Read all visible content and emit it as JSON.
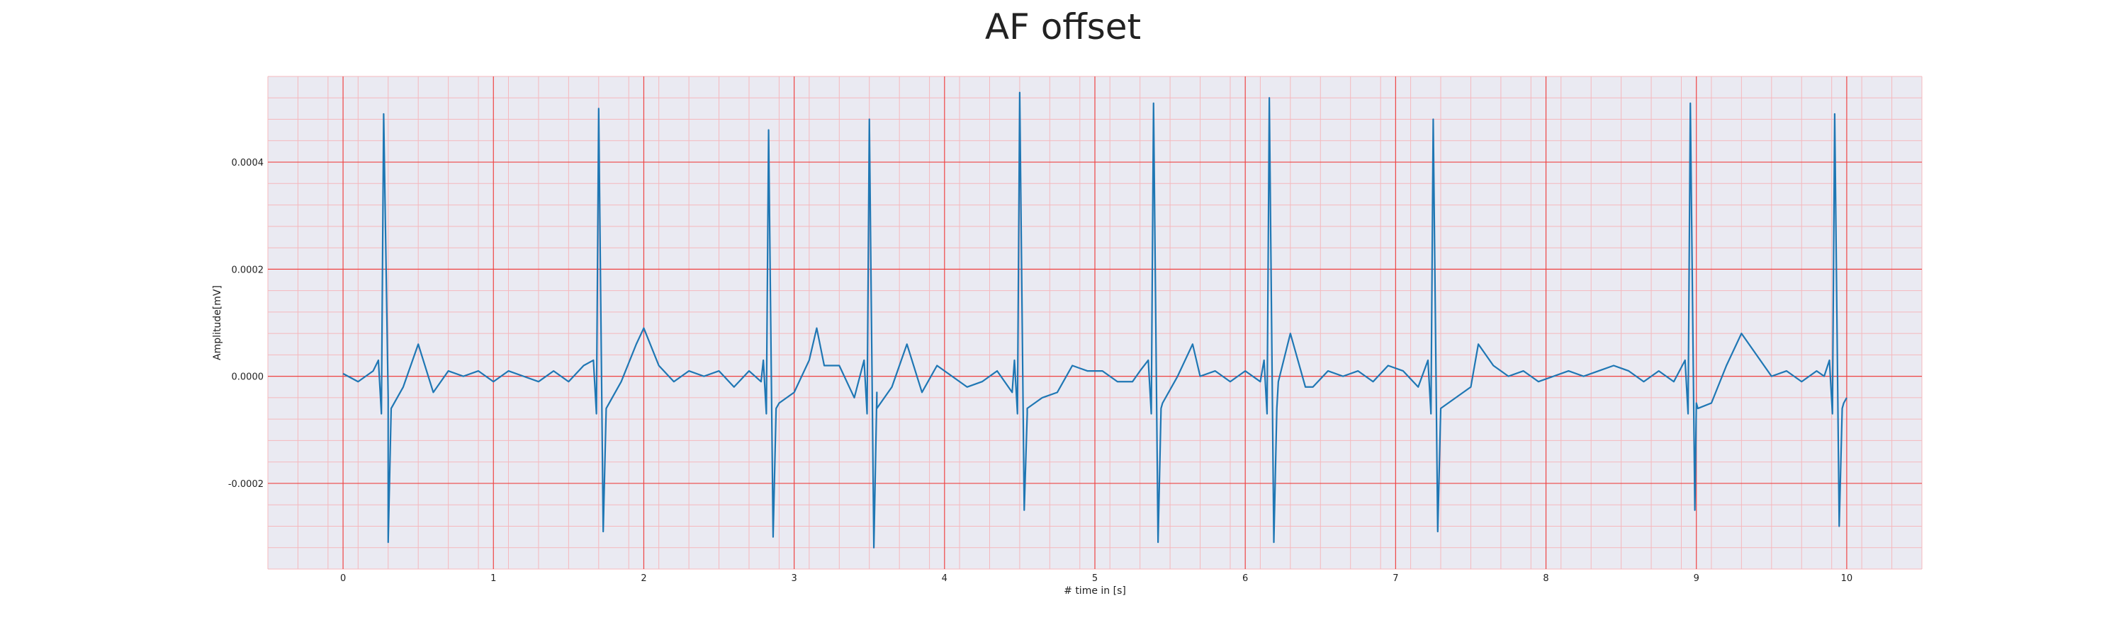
{
  "chart_data": {
    "type": "line",
    "title": "AF offset",
    "xlabel": "# time in [s]",
    "ylabel": "Amplitude[mV]",
    "xlim": [
      -0.5,
      10.5
    ],
    "ylim": [
      -0.00036,
      0.00056
    ],
    "xticks": [
      0,
      1,
      2,
      3,
      4,
      5,
      6,
      7,
      8,
      9,
      10
    ],
    "xtick_labels": [
      "0",
      "1",
      "2",
      "3",
      "4",
      "5",
      "6",
      "7",
      "8",
      "9",
      "10"
    ],
    "yticks": [
      -0.0002,
      0.0,
      0.0002,
      0.0004
    ],
    "ytick_labels": [
      "-0.0002",
      "0.0000",
      "0.0002",
      "0.0004"
    ],
    "grid": true,
    "legend": "none",
    "series": [
      {
        "color": "#1f77b4",
        "beats": [
          {
            "t": 0.27,
            "r": 0.00049,
            "s": -0.00031
          },
          {
            "t": 1.7,
            "r": 0.0005,
            "s": -0.00029
          },
          {
            "t": 2.83,
            "r": 0.00046,
            "s": -0.0003
          },
          {
            "t": 3.5,
            "r": 0.00048,
            "s": -0.00032
          },
          {
            "t": 4.5,
            "r": 0.00053,
            "s": -0.00025
          },
          {
            "t": 5.39,
            "r": 0.00051,
            "s": -0.00031
          },
          {
            "t": 6.16,
            "r": 0.00052,
            "s": -0.00031
          },
          {
            "t": 7.25,
            "r": 0.00048,
            "s": -0.00029
          },
          {
            "t": 8.96,
            "r": 0.00051,
            "s": -0.00025
          },
          {
            "t": 9.92,
            "r": 0.00049,
            "s": -0.00028
          }
        ],
        "x": [
          0.0,
          0.1,
          0.2,
          0.3,
          0.4,
          0.5,
          0.6,
          0.7,
          0.8,
          0.9,
          1.0,
          1.1,
          1.2,
          1.3,
          1.4,
          1.5,
          1.6,
          1.75,
          1.85,
          1.95,
          2.0,
          2.1,
          2.2,
          2.3,
          2.4,
          2.5,
          2.6,
          2.7,
          2.78,
          2.9,
          3.0,
          3.1,
          3.15,
          3.2,
          3.3,
          3.4,
          3.55,
          3.65,
          3.75,
          3.85,
          3.95,
          4.05,
          4.15,
          4.25,
          4.35,
          4.45,
          4.55,
          4.65,
          4.75,
          4.85,
          4.95,
          5.05,
          5.15,
          5.25,
          5.3,
          5.45,
          5.55,
          5.65,
          5.7,
          5.8,
          5.9,
          6.0,
          6.1,
          6.22,
          6.3,
          6.4,
          6.45,
          6.55,
          6.65,
          6.75,
          6.85,
          6.95,
          7.05,
          7.15,
          7.3,
          7.4,
          7.5,
          7.55,
          7.65,
          7.75,
          7.85,
          7.95,
          8.05,
          8.15,
          8.25,
          8.35,
          8.45,
          8.55,
          8.65,
          8.75,
          8.85,
          9.0,
          9.1,
          9.2,
          9.3,
          9.4,
          9.5,
          9.6,
          9.7,
          9.8,
          9.85,
          9.98,
          10.0
        ],
        "y": [
          5e-06,
          -1e-05,
          1e-05,
          -4e-05,
          -2e-05,
          6e-05,
          -3e-05,
          1e-05,
          0.0,
          1e-05,
          -1e-05,
          1e-05,
          0.0,
          -1e-05,
          1e-05,
          -1e-05,
          2e-05,
          -6e-05,
          -1e-05,
          6e-05,
          9e-05,
          2e-05,
          -1e-05,
          1e-05,
          0.0,
          1e-05,
          -2e-05,
          1e-05,
          -1e-05,
          -5e-05,
          -3e-05,
          3e-05,
          9e-05,
          2e-05,
          2e-05,
          -4e-05,
          -3e-05,
          -2e-05,
          6e-05,
          -3e-05,
          2e-05,
          0.0,
          -2e-05,
          -1e-05,
          1e-05,
          -3e-05,
          -7e-05,
          -4e-05,
          -3e-05,
          2e-05,
          1e-05,
          1e-05,
          -1e-05,
          -1e-05,
          1e-05,
          -5e-05,
          0.0,
          6e-05,
          0.0,
          1e-05,
          -1e-05,
          1e-05,
          -1e-05,
          -1e-05,
          8e-05,
          -2e-05,
          -2e-05,
          1e-05,
          0.0,
          1e-05,
          -1e-05,
          2e-05,
          1e-05,
          -2e-05,
          -6e-05,
          -4e-05,
          -2e-05,
          6e-05,
          2e-05,
          0.0,
          1e-05,
          -1e-05,
          0.0,
          1e-05,
          0.0,
          1e-05,
          2e-05,
          1e-05,
          -1e-05,
          1e-05,
          -1e-05,
          -5e-05,
          -5e-05,
          2e-05,
          8e-05,
          4e-05,
          0.0,
          1e-05,
          -1e-05,
          1e-05,
          0.0,
          -5e-05,
          -4e-05
        ]
      }
    ]
  }
}
